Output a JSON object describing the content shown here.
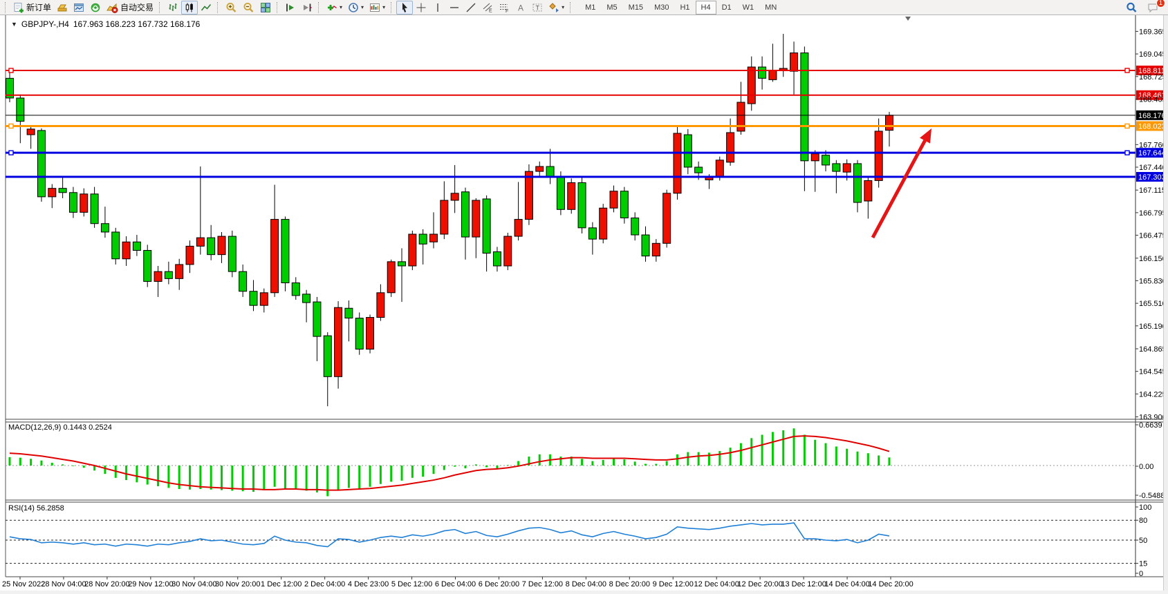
{
  "toolbar": {
    "new_order_label": "新订单",
    "autotrading_label": "自动交易",
    "timeframes": [
      "M1",
      "M5",
      "M15",
      "M30",
      "H1",
      "H4",
      "D1",
      "W1",
      "MN"
    ],
    "active_timeframe": "H4",
    "notification_badge": "1"
  },
  "chart": {
    "title_arrow": "▼",
    "symbol_period": "GBPJPY-,H4",
    "ohlc": "167.963 168.223 167.732 168.176",
    "macd_label": "MACD(12,26,9) 0.1443 0.2524",
    "rsi_label": "RSI(14) 56.2858"
  },
  "chart_data": {
    "type": "candlestick",
    "symbol": "GBPJPY-",
    "period": "H4",
    "up_color": "#ed1000",
    "down_color": "#00cd00",
    "current_price": "168.176",
    "candles": [
      [
        168.7,
        168.79,
        168.36,
        168.42
      ],
      [
        168.42,
        168.47,
        167.78,
        168.09
      ],
      [
        167.9,
        168.02,
        167.7,
        167.98
      ],
      [
        167.96,
        167.99,
        166.95,
        167.02
      ],
      [
        167.02,
        167.2,
        166.86,
        167.14
      ],
      [
        167.14,
        167.3,
        167.0,
        167.08
      ],
      [
        167.08,
        167.16,
        166.72,
        166.8
      ],
      [
        166.8,
        167.14,
        166.74,
        167.06
      ],
      [
        167.06,
        167.16,
        166.58,
        166.64
      ],
      [
        166.64,
        166.88,
        166.44,
        166.52
      ],
      [
        166.52,
        166.58,
        166.06,
        166.14
      ],
      [
        166.14,
        166.46,
        166.04,
        166.38
      ],
      [
        166.38,
        166.48,
        166.18,
        166.26
      ],
      [
        166.26,
        166.34,
        165.74,
        165.82
      ],
      [
        165.82,
        166.04,
        165.6,
        165.96
      ],
      [
        165.96,
        166.1,
        165.78,
        165.86
      ],
      [
        165.86,
        166.14,
        165.7,
        166.06
      ],
      [
        166.06,
        166.4,
        165.94,
        166.32
      ],
      [
        166.32,
        167.45,
        166.2,
        166.44
      ],
      [
        166.44,
        166.62,
        166.12,
        166.2
      ],
      [
        166.2,
        166.52,
        166.08,
        166.46
      ],
      [
        166.46,
        166.54,
        165.88,
        165.96
      ],
      [
        165.96,
        166.06,
        165.6,
        165.68
      ],
      [
        165.68,
        165.84,
        165.4,
        165.48
      ],
      [
        165.48,
        165.72,
        165.38,
        165.66
      ],
      [
        165.66,
        167.19,
        165.6,
        166.7
      ],
      [
        166.7,
        166.74,
        165.68,
        165.8
      ],
      [
        165.8,
        165.88,
        165.56,
        165.62
      ],
      [
        165.64,
        165.7,
        165.24,
        165.52
      ],
      [
        165.53,
        165.6,
        164.69,
        165.04
      ],
      [
        165.05,
        165.1,
        164.05,
        164.47
      ],
      [
        164.47,
        165.54,
        164.3,
        165.45
      ],
      [
        165.44,
        165.55,
        164.97,
        165.3
      ],
      [
        165.3,
        165.38,
        164.78,
        164.86
      ],
      [
        164.86,
        165.35,
        164.8,
        165.31
      ],
      [
        165.31,
        165.78,
        165.26,
        165.66
      ],
      [
        165.66,
        166.13,
        165.6,
        166.1
      ],
      [
        166.1,
        166.29,
        165.53,
        166.04
      ],
      [
        166.04,
        166.54,
        165.98,
        166.49
      ],
      [
        166.49,
        166.56,
        166.06,
        166.35
      ],
      [
        166.38,
        166.8,
        166.29,
        166.49
      ],
      [
        166.49,
        167.24,
        166.42,
        166.97
      ],
      [
        166.97,
        167.47,
        166.79,
        167.07
      ],
      [
        167.09,
        167.15,
        166.13,
        166.45
      ],
      [
        166.45,
        167.0,
        166.15,
        166.97
      ],
      [
        166.99,
        167.04,
        165.96,
        166.22
      ],
      [
        166.24,
        166.31,
        165.96,
        166.04
      ],
      [
        166.04,
        166.51,
        165.98,
        166.46
      ],
      [
        166.46,
        167.23,
        166.4,
        166.7
      ],
      [
        166.7,
        167.48,
        166.62,
        167.38
      ],
      [
        167.38,
        167.52,
        167.3,
        167.45
      ],
      [
        167.45,
        167.7,
        167.2,
        167.3
      ],
      [
        167.3,
        167.38,
        166.76,
        166.84
      ],
      [
        166.84,
        167.28,
        166.78,
        167.22
      ],
      [
        167.22,
        167.3,
        166.5,
        166.58
      ],
      [
        166.58,
        166.66,
        166.2,
        166.42
      ],
      [
        166.42,
        166.92,
        166.36,
        166.86
      ],
      [
        166.86,
        167.18,
        166.8,
        167.1
      ],
      [
        167.1,
        167.16,
        166.64,
        166.72
      ],
      [
        166.72,
        166.8,
        166.4,
        166.48
      ],
      [
        166.48,
        166.6,
        166.1,
        166.18
      ],
      [
        166.18,
        166.42,
        166.1,
        166.36
      ],
      [
        166.36,
        167.12,
        166.3,
        167.07
      ],
      [
        167.07,
        168.02,
        166.98,
        167.92
      ],
      [
        167.9,
        167.98,
        167.34,
        167.44
      ],
      [
        167.44,
        167.52,
        167.26,
        167.36
      ],
      [
        167.26,
        167.34,
        167.13,
        167.31
      ],
      [
        167.31,
        167.59,
        167.25,
        167.54
      ],
      [
        167.51,
        168.13,
        167.46,
        167.93
      ],
      [
        167.95,
        168.65,
        167.9,
        168.36
      ],
      [
        168.34,
        169.01,
        168.24,
        168.86
      ],
      [
        168.86,
        169.01,
        168.54,
        168.7
      ],
      [
        168.68,
        169.19,
        168.65,
        168.81
      ],
      [
        168.81,
        169.33,
        168.72,
        168.84
      ],
      [
        168.8,
        169.22,
        168.47,
        169.06
      ],
      [
        169.06,
        169.15,
        167.1,
        167.53
      ],
      [
        167.53,
        167.68,
        167.09,
        167.63
      ],
      [
        167.61,
        167.68,
        167.38,
        167.47
      ],
      [
        167.49,
        167.54,
        167.07,
        167.38
      ],
      [
        167.37,
        167.55,
        167.25,
        167.49
      ],
      [
        167.49,
        167.54,
        166.8,
        166.94
      ],
      [
        166.96,
        167.31,
        166.71,
        167.25
      ],
      [
        167.25,
        168.13,
        167.15,
        167.95
      ],
      [
        167.963,
        168.223,
        167.732,
        168.176
      ]
    ],
    "price_lines": [
      {
        "price": 168.811,
        "color": "#e60000",
        "width": 2,
        "handles": true,
        "badge": "#e60000"
      },
      {
        "price": 168.461,
        "color": "#e60000",
        "width": 2,
        "handles": false,
        "badge": "#e60000"
      },
      {
        "price": 168.176,
        "color": "#000000",
        "width": 1,
        "handles": false,
        "badge": "#000000"
      },
      {
        "price": 168.023,
        "color": "#ff9800",
        "width": 3,
        "handles": true,
        "badge": "#ff9800"
      },
      {
        "price": 167.644,
        "color": "#0000e1",
        "width": 3,
        "handles": true,
        "badge": "#0000e1"
      },
      {
        "price": 167.303,
        "color": "#0000e1",
        "width": 3,
        "handles": false,
        "badge": "#0000e1"
      }
    ],
    "y_ticks": [
      169.365,
      169.045,
      168.725,
      168.405,
      167.76,
      167.44,
      167.115,
      166.795,
      166.475,
      166.15,
      165.83,
      165.51,
      165.19,
      164.865,
      164.545,
      164.225,
      163.9
    ],
    "time_labels": [
      "25 Nov 2022",
      "28 Nov 04:00",
      "28 Nov 20:00",
      "29 Nov 12:00",
      "30 Nov 04:00",
      "30 Nov 20:00",
      "1 Dec 12:00",
      "2 Dec 04:00",
      "4 Dec 23:00",
      "5 Dec 12:00",
      "6 Dec 04:00",
      "6 Dec 20:00",
      "7 Dec 12:00",
      "8 Dec 04:00",
      "8 Dec 20:00",
      "9 Dec 12:00",
      "12 Dec 04:00",
      "12 Dec 20:00",
      "13 Dec 12:00",
      "14 Dec 04:00",
      "14 Dec 20:00"
    ],
    "macd": {
      "histogram": [
        0.15,
        0.14,
        0.12,
        0.09,
        0.05,
        0.02,
        -0.01,
        -0.04,
        -0.09,
        -0.15,
        -0.22,
        -0.26,
        -0.3,
        -0.34,
        -0.37,
        -0.4,
        -0.42,
        -0.43,
        -0.42,
        -0.43,
        -0.44,
        -0.45,
        -0.46,
        -0.47,
        -0.44,
        -0.38,
        -0.41,
        -0.43,
        -0.45,
        -0.48,
        -0.5488,
        -0.44,
        -0.4,
        -0.42,
        -0.38,
        -0.33,
        -0.29,
        -0.27,
        -0.22,
        -0.2,
        -0.15,
        -0.08,
        -0.02,
        -0.05,
        0.02,
        -0.03,
        -0.06,
        0.01,
        0.08,
        0.16,
        0.2,
        0.2,
        0.16,
        0.16,
        0.12,
        0.08,
        0.1,
        0.13,
        0.11,
        0.07,
        0.03,
        0.03,
        0.08,
        0.2,
        0.24,
        0.24,
        0.23,
        0.26,
        0.32,
        0.4,
        0.49,
        0.55,
        0.6,
        0.63,
        0.6639,
        0.55,
        0.46,
        0.4,
        0.34,
        0.3,
        0.25,
        0.22,
        0.18,
        0.1443
      ],
      "signal": [
        0.22,
        0.21,
        0.19,
        0.17,
        0.14,
        0.11,
        0.08,
        0.04,
        0.0,
        -0.05,
        -0.1,
        -0.15,
        -0.19,
        -0.23,
        -0.27,
        -0.31,
        -0.34,
        -0.36,
        -0.38,
        -0.39,
        -0.4,
        -0.41,
        -0.42,
        -0.42,
        -0.43,
        -0.43,
        -0.42,
        -0.42,
        -0.43,
        -0.43,
        -0.44,
        -0.44,
        -0.43,
        -0.42,
        -0.41,
        -0.39,
        -0.37,
        -0.35,
        -0.32,
        -0.29,
        -0.26,
        -0.22,
        -0.17,
        -0.13,
        -0.09,
        -0.07,
        -0.06,
        -0.04,
        -0.01,
        0.03,
        0.07,
        0.1,
        0.12,
        0.14,
        0.14,
        0.13,
        0.13,
        0.13,
        0.13,
        0.12,
        0.11,
        0.1,
        0.1,
        0.12,
        0.15,
        0.17,
        0.18,
        0.2,
        0.23,
        0.27,
        0.32,
        0.37,
        0.42,
        0.47,
        0.52,
        0.53,
        0.52,
        0.5,
        0.47,
        0.44,
        0.4,
        0.36,
        0.31,
        0.2524
      ],
      "axis_max": "0.6639",
      "axis_zero": "0.00",
      "axis_min": "-0.5488",
      "hist_color": "#00cd00",
      "signal_color": "#e00000"
    },
    "rsi": {
      "series": [
        55,
        52,
        51,
        46,
        47,
        46,
        44,
        46,
        43,
        44,
        41,
        44,
        43,
        41,
        44,
        43,
        46,
        48,
        52,
        49,
        50,
        47,
        44,
        43,
        45,
        56,
        50,
        47,
        46,
        42,
        40,
        52,
        51,
        47,
        50,
        54,
        56,
        54,
        58,
        56,
        59,
        64,
        66,
        60,
        63,
        57,
        55,
        59,
        64,
        68,
        69,
        66,
        61,
        64,
        58,
        55,
        60,
        63,
        59,
        56,
        52,
        54,
        59,
        70,
        68,
        67,
        66,
        68,
        71,
        73,
        75,
        73,
        74,
        74,
        76,
        52,
        52,
        50,
        49,
        51,
        46,
        50,
        59,
        56.29
      ],
      "levels": [
        80,
        50,
        15
      ],
      "axis_ticks": [
        "100",
        "80",
        "50",
        "15",
        "0"
      ],
      "line_color": "#1e7fd6"
    },
    "arrow_annotation": {
      "color": "#e51515",
      "from": [
        1262,
        344
      ],
      "to": [
        1347,
        186
      ]
    }
  }
}
